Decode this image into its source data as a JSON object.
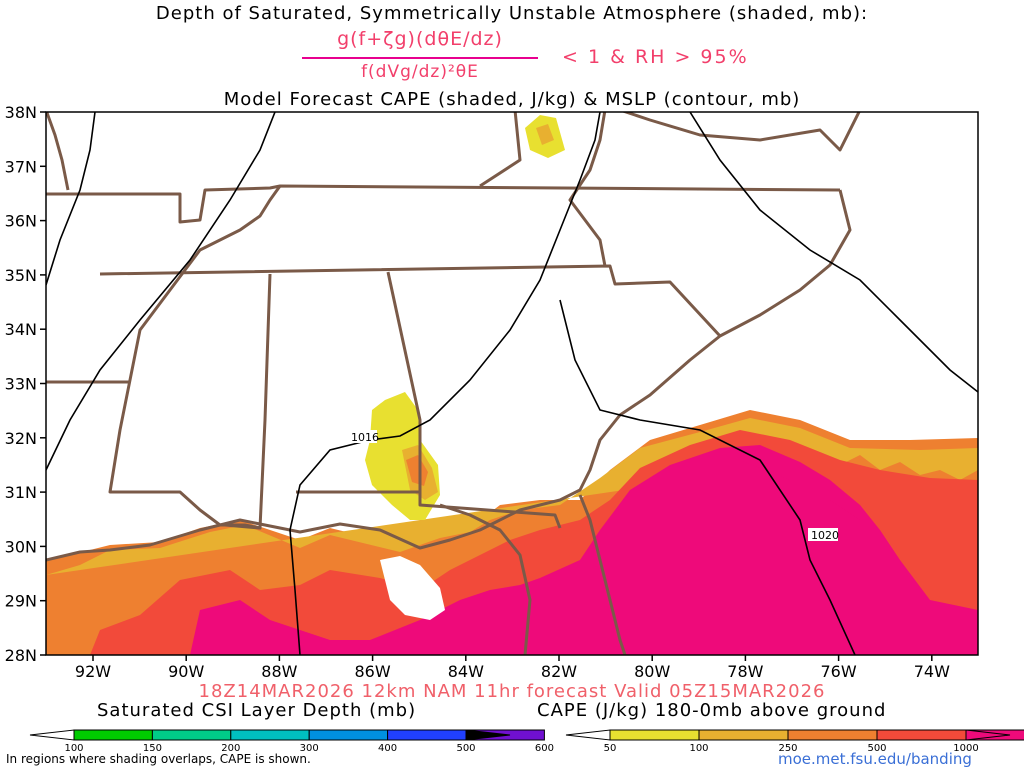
{
  "header": {
    "title1": "Depth of Saturated, Symmetrically Unstable Atmosphere (shaded, mb):",
    "formula_numerator": "g(f+ζg)(dθE/dz)",
    "formula_denominator": "f(dVg/dz)²θE",
    "condition": "< 1 & RH > 95%",
    "title3": "Model Forecast CAPE (shaded, J/kg) & MSLP (contour, mb)"
  },
  "map": {
    "lat_labels": [
      "38N",
      "37N",
      "36N",
      "35N",
      "34N",
      "33N",
      "32N",
      "31N",
      "30N",
      "29N",
      "28N"
    ],
    "lon_labels": [
      "92W",
      "90W",
      "88W",
      "86W",
      "84W",
      "82W",
      "80W",
      "78W",
      "76W",
      "74W"
    ],
    "isobar_labels": [
      "1016",
      "1020"
    ]
  },
  "footer": {
    "valid_line": "18Z14MAR2026 12km NAM 11hr forecast Valid 05Z15MAR2026",
    "csi_label": "Saturated CSI Layer Depth (mb)",
    "cape_label": "CAPE (J/kg) 180-0mb above ground",
    "csi_ticks": [
      "100",
      "150",
      "200",
      "300",
      "400",
      "500",
      "600"
    ],
    "cape_ticks": [
      "50",
      "100",
      "250",
      "500",
      "1000"
    ],
    "note": "In regions where shading overlaps, CAPE is shown.",
    "link": "moe.met.fsu.edu/banding"
  },
  "colors": {
    "csi": [
      "#00cc00",
      "#00cc88",
      "#00c0c0",
      "#0090e0",
      "#2040ff",
      "#7010d0",
      "#000000"
    ],
    "cape": [
      "#e8e030",
      "#e8b030",
      "#ee8030",
      "#f24a3a",
      "#ee0a7a"
    ],
    "border": "#7a5a48",
    "isobar": "#000000"
  }
}
